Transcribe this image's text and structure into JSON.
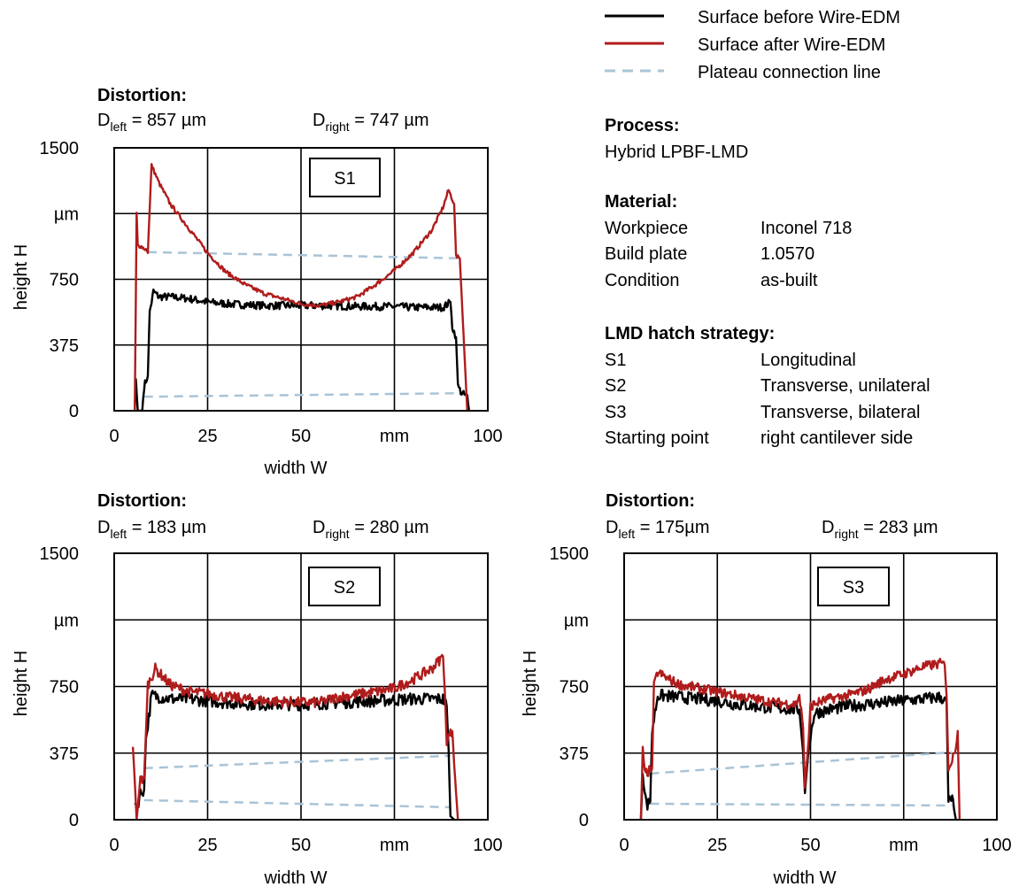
{
  "legend": [
    {
      "label": "Surface before Wire-EDM",
      "color": "#000000",
      "dash": false
    },
    {
      "label": "Surface after Wire-EDM",
      "color": "#b01c1c",
      "dash": false
    },
    {
      "label": "Plateau connection line",
      "color": "#a9c4d6",
      "dash": true
    }
  ],
  "info": {
    "process_header": "Process:",
    "process_value": "Hybrid LPBF-LMD",
    "material_header": "Material:",
    "material_rows": [
      {
        "key": "Workpiece",
        "value": "Inconel 718"
      },
      {
        "key": "Build plate",
        "value": "1.0570"
      },
      {
        "key": "Condition",
        "value": "as-built"
      }
    ],
    "hatch_header": "LMD hatch strategy:",
    "hatch_rows": [
      {
        "key": "S1",
        "value": "Longitudinal"
      },
      {
        "key": "S2",
        "value": "Transverse, unilateral"
      },
      {
        "key": "S3",
        "value": "Transverse, bilateral"
      },
      {
        "key": "Starting point",
        "value": "right cantilever side"
      }
    ]
  },
  "colors": {
    "before": "#000000",
    "after": "#b01c1c",
    "plateau": "#a9c4d6"
  },
  "chart_data": [
    {
      "type": "line",
      "label": "S1",
      "distortion_title": "Distortion:",
      "d_left_text": "857 µm",
      "d_right_text": "747 µm",
      "xlabel": "width W",
      "ylabel": "height H",
      "yunit": "µm",
      "xunit": "mm",
      "xlim": [
        0,
        100
      ],
      "ylim": [
        0,
        1500
      ],
      "x_ticks": [
        "0",
        "25",
        "50",
        "mm",
        "100"
      ],
      "y_ticks": [
        "0",
        "375",
        "750",
        "µm",
        "1500"
      ],
      "grid": true,
      "series": [
        {
          "name": "Surface before Wire-EDM",
          "key": "before",
          "points": [
            [
              5.5,
              0
            ],
            [
              5.8,
              180
            ],
            [
              6.3,
              0
            ],
            [
              7.5,
              0
            ],
            [
              8,
              140
            ],
            [
              9,
              200
            ],
            [
              9.5,
              560
            ],
            [
              10.5,
              680
            ],
            [
              12,
              650
            ],
            [
              15,
              650
            ],
            [
              20,
              640
            ],
            [
              25,
              620
            ],
            [
              30,
              610
            ],
            [
              35,
              605
            ],
            [
              40,
              600
            ],
            [
              45,
              600
            ],
            [
              50,
              600
            ],
            [
              55,
              600
            ],
            [
              60,
              598
            ],
            [
              65,
              595
            ],
            [
              70,
              595
            ],
            [
              75,
              595
            ],
            [
              80,
              590
            ],
            [
              85,
              590
            ],
            [
              88,
              590
            ],
            [
              90,
              620
            ],
            [
              90.5,
              480
            ],
            [
              91.5,
              420
            ],
            [
              92,
              140
            ],
            [
              93,
              100
            ],
            [
              94.5,
              80
            ],
            [
              95,
              0
            ]
          ],
          "noise": 22
        },
        {
          "name": "Surface after Wire-EDM",
          "key": "after",
          "points": [
            [
              5.5,
              0
            ],
            [
              6,
              1130
            ],
            [
              6.3,
              940
            ],
            [
              7,
              940
            ],
            [
              8.5,
              920
            ],
            [
              9,
              900
            ],
            [
              10,
              1400
            ],
            [
              12,
              1300
            ],
            [
              15,
              1180
            ],
            [
              20,
              1040
            ],
            [
              25,
              900
            ],
            [
              30,
              790
            ],
            [
              35,
              720
            ],
            [
              40,
              670
            ],
            [
              45,
              640
            ],
            [
              50,
              610
            ],
            [
              55,
              600
            ],
            [
              60,
              620
            ],
            [
              65,
              650
            ],
            [
              70,
              720
            ],
            [
              75,
              800
            ],
            [
              80,
              900
            ],
            [
              85,
              1030
            ],
            [
              88,
              1160
            ],
            [
              89.5,
              1260
            ],
            [
              91,
              1180
            ],
            [
              91.5,
              880
            ],
            [
              92.5,
              870
            ],
            [
              94.5,
              0
            ]
          ],
          "noise": 12
        },
        {
          "name": "Plateau connection line",
          "key": "plateau",
          "points": [
            [
              9,
              905
            ],
            [
              92,
              870
            ]
          ]
        },
        {
          "name": "Plateau connection line",
          "key": "plateau",
          "points": [
            [
              8,
              80
            ],
            [
              93,
              100
            ]
          ]
        }
      ]
    },
    {
      "type": "line",
      "label": "S2",
      "distortion_title": "Distortion:",
      "d_left_text": "183 µm",
      "d_right_text": "280 µm",
      "xlabel": "width W",
      "ylabel": "height H",
      "yunit": "µm",
      "xunit": "mm",
      "xlim": [
        0,
        100
      ],
      "ylim": [
        0,
        1500
      ],
      "x_ticks": [
        "0",
        "25",
        "50",
        "mm",
        "100"
      ],
      "y_ticks": [
        "0",
        "375",
        "750",
        "µm",
        "1500"
      ],
      "grid": true,
      "series": [
        {
          "name": "Surface before Wire-EDM",
          "key": "before",
          "points": [
            [
              5.5,
              120
            ],
            [
              6,
              60
            ],
            [
              7,
              150
            ],
            [
              8,
              170
            ],
            [
              8.5,
              450
            ],
            [
              10,
              700
            ],
            [
              15,
              680
            ],
            [
              20,
              680
            ],
            [
              25,
              670
            ],
            [
              30,
              660
            ],
            [
              40,
              650
            ],
            [
              50,
              650
            ],
            [
              60,
              660
            ],
            [
              70,
              670
            ],
            [
              80,
              680
            ],
            [
              88,
              680
            ],
            [
              89,
              640
            ],
            [
              89.5,
              400
            ],
            [
              90,
              20
            ],
            [
              91,
              0
            ]
          ],
          "noise": 35
        },
        {
          "name": "Surface after Wire-EDM",
          "key": "after",
          "points": [
            [
              5,
              410
            ],
            [
              5.5,
              220
            ],
            [
              6,
              0
            ],
            [
              7,
              230
            ],
            [
              8,
              230
            ],
            [
              9,
              760
            ],
            [
              11,
              850
            ],
            [
              15,
              760
            ],
            [
              20,
              720
            ],
            [
              25,
              710
            ],
            [
              30,
              690
            ],
            [
              40,
              670
            ],
            [
              50,
              660
            ],
            [
              55,
              660
            ],
            [
              60,
              690
            ],
            [
              70,
              720
            ],
            [
              75,
              740
            ],
            [
              80,
              790
            ],
            [
              85,
              850
            ],
            [
              88,
              920
            ],
            [
              88.5,
              720
            ],
            [
              89,
              450
            ],
            [
              90.5,
              500
            ],
            [
              91,
              310
            ],
            [
              92,
              0
            ]
          ],
          "noise": 30
        },
        {
          "name": "Plateau connection line",
          "key": "plateau",
          "points": [
            [
              8,
              290
            ],
            [
              90,
              360
            ]
          ]
        },
        {
          "name": "Plateau connection line",
          "key": "plateau",
          "points": [
            [
              8,
              110
            ],
            [
              90,
              70
            ]
          ]
        }
      ]
    },
    {
      "type": "line",
      "label": "S3",
      "distortion_title": "Distortion:",
      "d_left_text": "175µm",
      "d_right_text": "283 µm",
      "xlabel": "width W",
      "ylabel": "height H",
      "yunit": "µm",
      "xunit": "mm",
      "xlim": [
        0,
        100
      ],
      "ylim": [
        0,
        1500
      ],
      "x_ticks": [
        "0",
        "25",
        "50",
        "mm",
        "100"
      ],
      "y_ticks": [
        "0",
        "375",
        "750",
        "µm",
        "1500"
      ],
      "grid": true,
      "series": [
        {
          "name": "Surface before Wire-EDM",
          "key": "before",
          "points": [
            [
              4.5,
              0
            ],
            [
              5,
              270
            ],
            [
              6,
              80
            ],
            [
              7,
              100
            ],
            [
              7.5,
              500
            ],
            [
              9,
              700
            ],
            [
              15,
              690
            ],
            [
              20,
              680
            ],
            [
              25,
              670
            ],
            [
              30,
              650
            ],
            [
              40,
              630
            ],
            [
              47,
              620
            ],
            [
              48,
              380
            ],
            [
              48.5,
              150
            ],
            [
              49.5,
              400
            ],
            [
              51,
              600
            ],
            [
              55,
              620
            ],
            [
              60,
              640
            ],
            [
              70,
              660
            ],
            [
              80,
              680
            ],
            [
              85,
              690
            ],
            [
              86.5,
              660
            ],
            [
              87,
              100
            ],
            [
              88,
              120
            ],
            [
              89,
              0
            ]
          ],
          "noise": 35
        },
        {
          "name": "Surface after Wire-EDM",
          "key": "after",
          "points": [
            [
              4.5,
              0
            ],
            [
              5,
              410
            ],
            [
              5.5,
              260
            ],
            [
              6.5,
              270
            ],
            [
              7.5,
              290
            ],
            [
              8,
              750
            ],
            [
              9,
              830
            ],
            [
              12,
              790
            ],
            [
              15,
              760
            ],
            [
              20,
              740
            ],
            [
              25,
              720
            ],
            [
              30,
              700
            ],
            [
              35,
              680
            ],
            [
              40,
              660
            ],
            [
              46,
              650
            ],
            [
              47,
              700
            ],
            [
              48,
              520
            ],
            [
              48.5,
              180
            ],
            [
              49.5,
              450
            ],
            [
              50,
              640
            ],
            [
              52,
              660
            ],
            [
              55,
              680
            ],
            [
              60,
              700
            ],
            [
              65,
              730
            ],
            [
              70,
              790
            ],
            [
              75,
              820
            ],
            [
              80,
              860
            ],
            [
              85,
              880
            ],
            [
              86,
              870
            ],
            [
              86.5,
              700
            ],
            [
              87,
              300
            ],
            [
              88,
              330
            ],
            [
              89,
              420
            ],
            [
              89.5,
              500
            ],
            [
              90,
              0
            ]
          ],
          "noise": 28
        },
        {
          "name": "Plateau connection line",
          "key": "plateau",
          "points": [
            [
              7,
              260
            ],
            [
              88,
              380
            ]
          ]
        },
        {
          "name": "Plateau connection line",
          "key": "plateau",
          "points": [
            [
              7,
              90
            ],
            [
              88,
              80
            ]
          ]
        }
      ]
    }
  ]
}
